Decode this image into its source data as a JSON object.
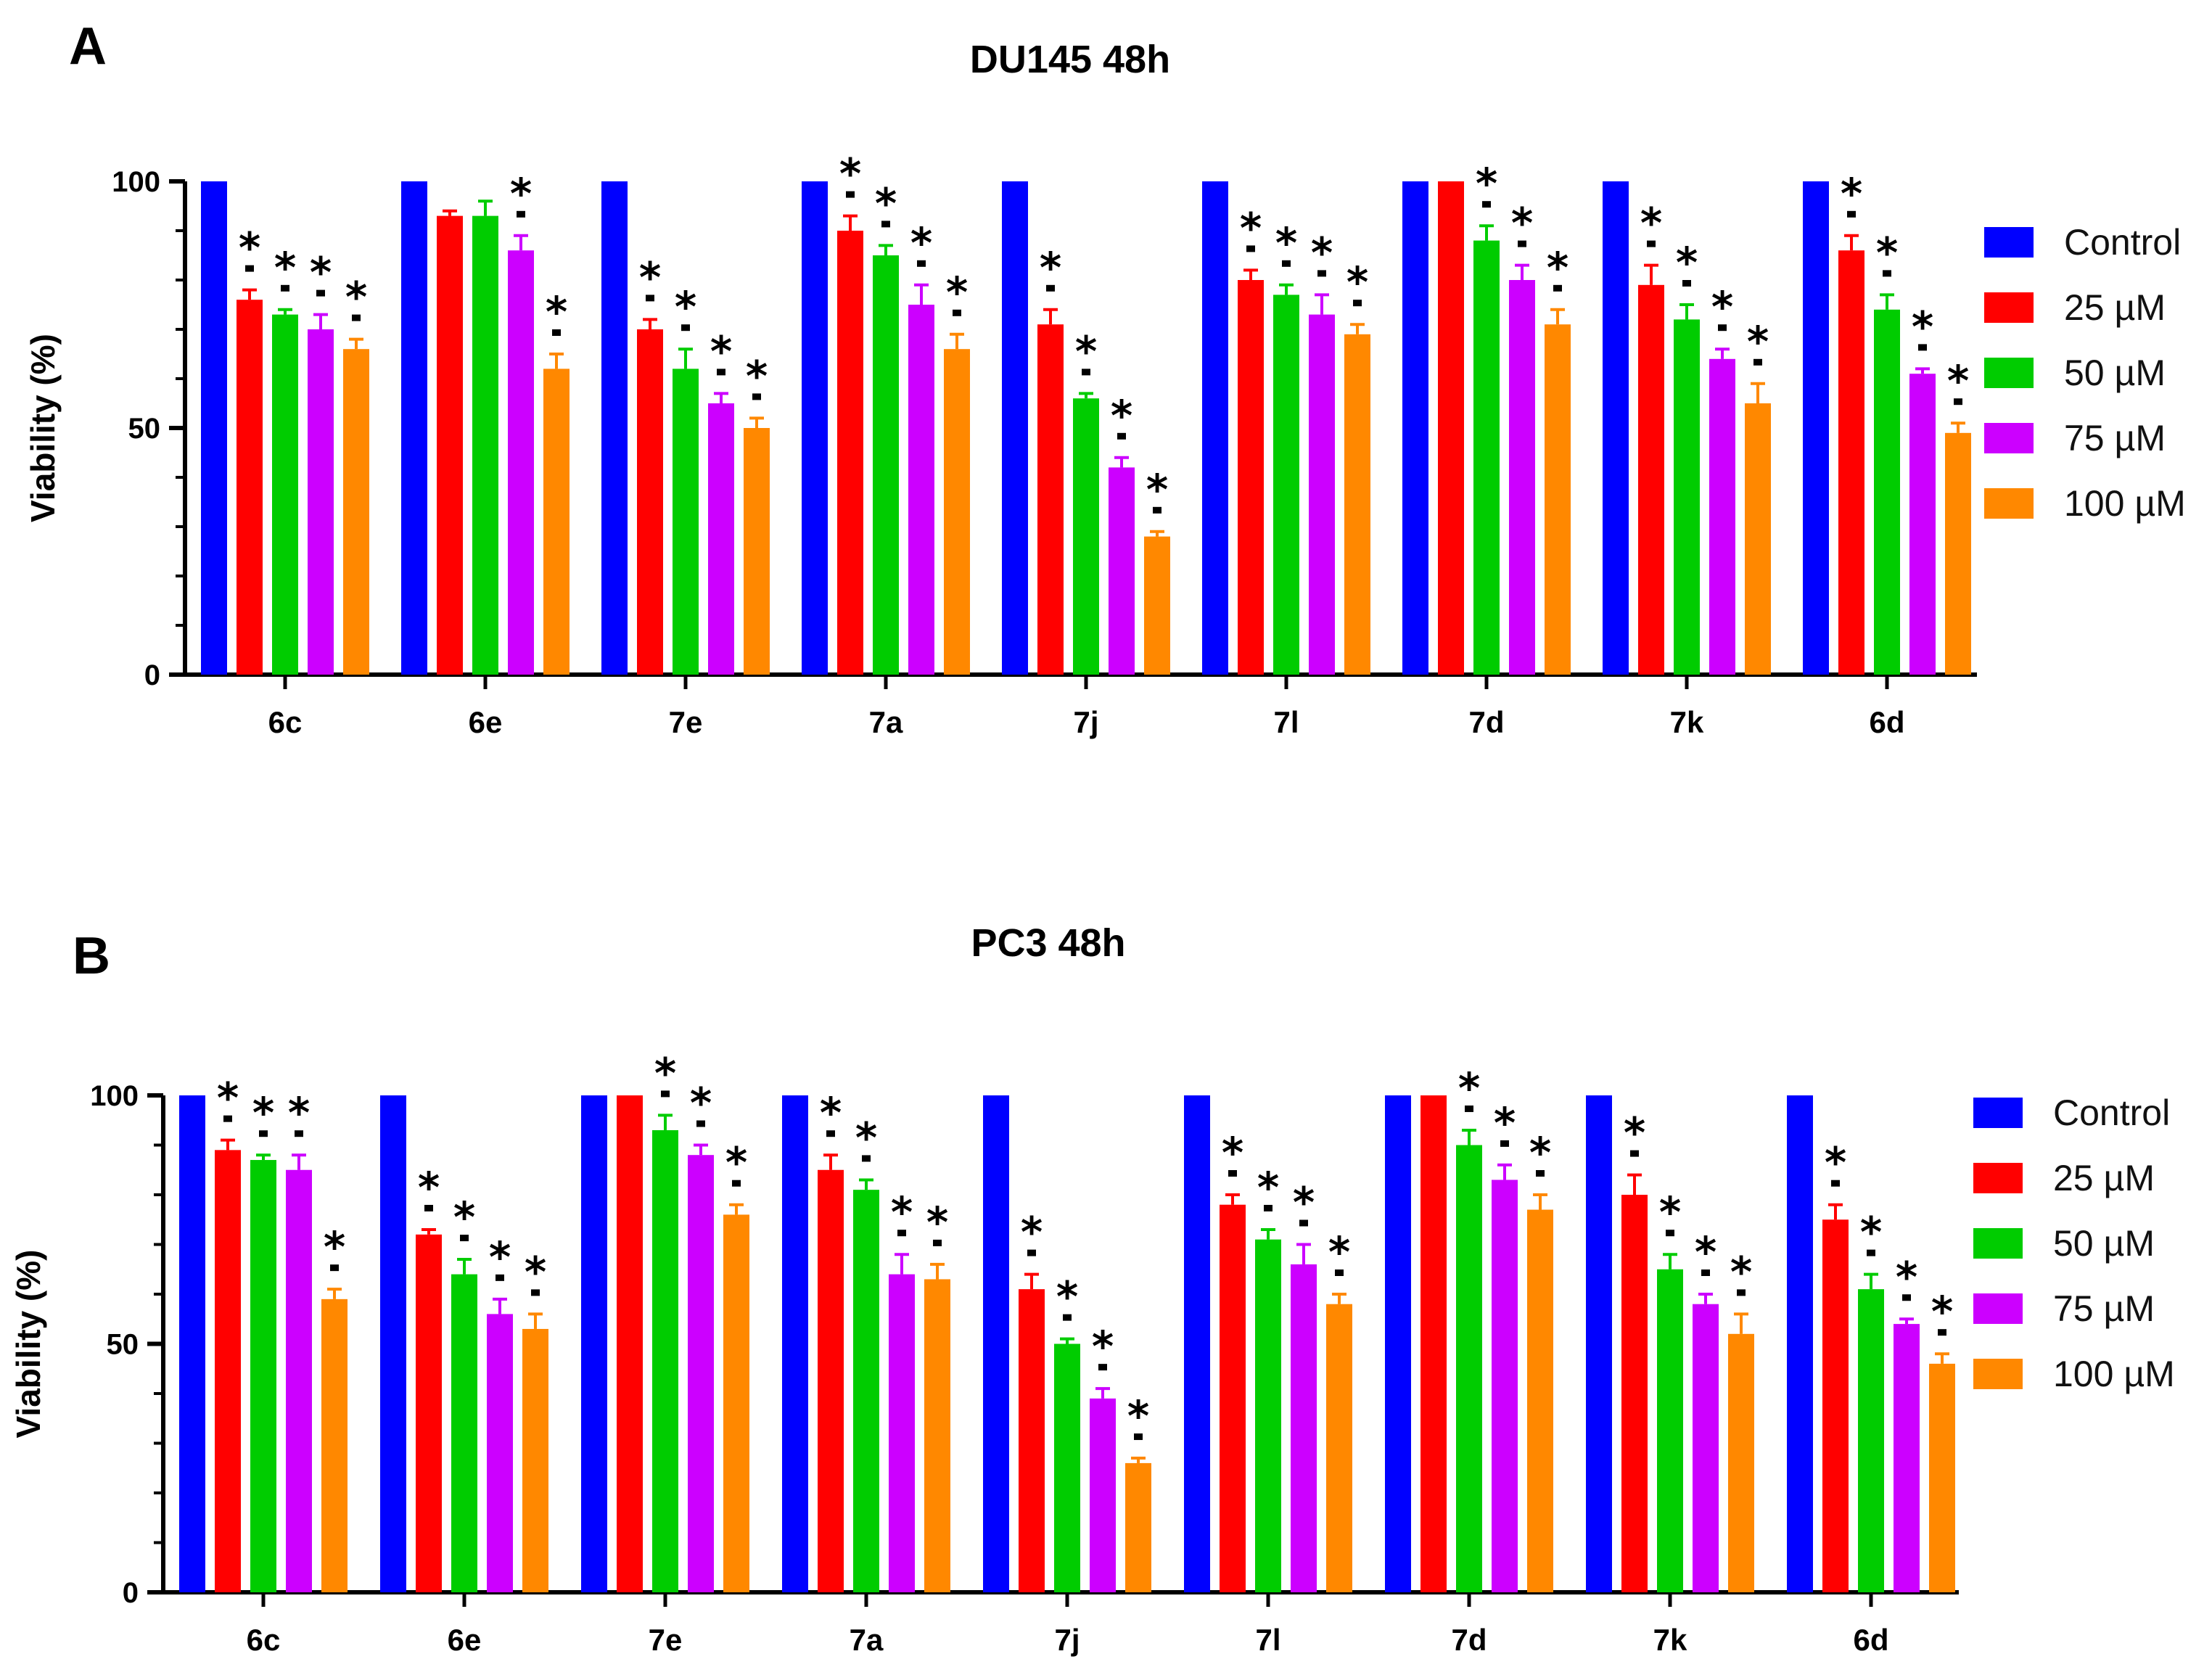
{
  "panels": [
    "A",
    "B"
  ],
  "chart_data": [
    {
      "type": "bar",
      "title": "DU145 48h",
      "xlabel": "",
      "ylabel": "Viability (%)",
      "ylim": [
        0,
        100
      ],
      "yticks": [
        "0",
        "50",
        "100"
      ],
      "legend_position": "right",
      "categories": [
        "6c",
        "6e",
        "7e",
        "7a",
        "7j",
        "7l",
        "7d",
        "7k",
        "6d"
      ],
      "series": [
        {
          "name": "Control",
          "color": "#0000ff",
          "values": [
            100,
            100,
            100,
            100,
            100,
            100,
            100,
            100,
            100
          ],
          "errors": [
            0,
            0,
            0,
            0,
            0,
            0,
            0,
            0,
            0
          ],
          "sig": [
            false,
            false,
            false,
            false,
            false,
            false,
            false,
            false,
            false
          ]
        },
        {
          "name": "25 µM",
          "color": "#ff0000",
          "values": [
            76,
            93,
            70,
            90,
            71,
            80,
            100,
            79,
            86
          ],
          "errors": [
            2,
            1,
            2,
            3,
            3,
            2,
            0,
            4,
            3
          ],
          "sig": [
            true,
            false,
            true,
            true,
            true,
            true,
            false,
            true,
            true
          ]
        },
        {
          "name": "50 µM",
          "color": "#00cc00",
          "values": [
            73,
            93,
            62,
            85,
            56,
            77,
            88,
            72,
            74
          ],
          "errors": [
            1,
            3,
            4,
            2,
            1,
            2,
            3,
            3,
            3
          ],
          "sig": [
            true,
            false,
            true,
            true,
            true,
            true,
            true,
            true,
            true
          ]
        },
        {
          "name": "75 µM",
          "color": "#cc00ff",
          "values": [
            70,
            86,
            55,
            75,
            42,
            73,
            80,
            64,
            61
          ],
          "errors": [
            3,
            3,
            2,
            4,
            2,
            4,
            3,
            2,
            1
          ],
          "sig": [
            true,
            true,
            true,
            true,
            true,
            true,
            true,
            true,
            true
          ]
        },
        {
          "name": "100 µM",
          "color": "#ff8800",
          "values": [
            66,
            62,
            50,
            66,
            28,
            69,
            71,
            55,
            49
          ],
          "errors": [
            2,
            3,
            2,
            3,
            1,
            2,
            3,
            4,
            2
          ],
          "sig": [
            true,
            true,
            true,
            true,
            true,
            true,
            true,
            true,
            true
          ]
        }
      ]
    },
    {
      "type": "bar",
      "title": "PC3 48h",
      "xlabel": "",
      "ylabel": "Viability (%)",
      "ylim": [
        0,
        100
      ],
      "yticks": [
        "0",
        "50",
        "100"
      ],
      "legend_position": "right",
      "categories": [
        "6c",
        "6e",
        "7e",
        "7a",
        "7j",
        "7l",
        "7d",
        "7k",
        "6d"
      ],
      "series": [
        {
          "name": "Control",
          "color": "#0000ff",
          "values": [
            100,
            100,
            100,
            100,
            100,
            100,
            100,
            100,
            100
          ],
          "errors": [
            0,
            0,
            0,
            0,
            0,
            0,
            0,
            0,
            0
          ],
          "sig": [
            false,
            false,
            false,
            false,
            false,
            false,
            false,
            false,
            false
          ]
        },
        {
          "name": "25 µM",
          "color": "#ff0000",
          "values": [
            89,
            72,
            100,
            85,
            61,
            78,
            100,
            80,
            75
          ],
          "errors": [
            2,
            1,
            0,
            3,
            3,
            2,
            0,
            4,
            3
          ],
          "sig": [
            true,
            true,
            false,
            true,
            true,
            true,
            false,
            true,
            true
          ]
        },
        {
          "name": "50 µM",
          "color": "#00cc00",
          "values": [
            87,
            64,
            93,
            81,
            50,
            71,
            90,
            65,
            61
          ],
          "errors": [
            1,
            3,
            3,
            2,
            1,
            2,
            3,
            3,
            3
          ],
          "sig": [
            true,
            true,
            true,
            true,
            true,
            true,
            true,
            true,
            true
          ]
        },
        {
          "name": "75 µM",
          "color": "#cc00ff",
          "values": [
            85,
            56,
            88,
            64,
            39,
            66,
            83,
            58,
            54
          ],
          "errors": [
            3,
            3,
            2,
            4,
            2,
            4,
            3,
            2,
            1
          ],
          "sig": [
            true,
            true,
            true,
            true,
            true,
            true,
            true,
            true,
            true
          ]
        },
        {
          "name": "100 µM",
          "color": "#ff8800",
          "values": [
            59,
            53,
            76,
            63,
            26,
            58,
            77,
            52,
            46
          ],
          "errors": [
            2,
            3,
            2,
            3,
            1,
            2,
            3,
            4,
            2
          ],
          "sig": [
            true,
            true,
            true,
            true,
            true,
            true,
            true,
            true,
            true
          ]
        }
      ]
    }
  ],
  "significance_marker": "*"
}
